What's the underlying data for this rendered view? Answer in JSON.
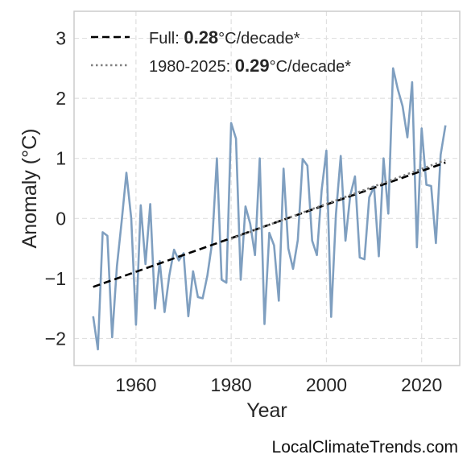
{
  "chart_data": {
    "type": "line",
    "title": "",
    "xlabel": "Year",
    "ylabel": "Anomaly (°C)",
    "xlim": [
      1947,
      2028
    ],
    "ylim": [
      -2.45,
      3.45
    ],
    "xticks": [
      1960,
      1980,
      2000,
      2020
    ],
    "yticks": [
      -2,
      -1,
      0,
      1,
      2,
      3
    ],
    "ytick_labels": [
      "−2",
      "−1",
      "0",
      "1",
      "2",
      "3"
    ],
    "grid": true,
    "legend_position": "top-left",
    "series": [
      {
        "kind": "data",
        "color": "#7f9fc0",
        "x": [
          1951,
          1952,
          1953,
          1954,
          1955,
          1956,
          1957,
          1958,
          1959,
          1960,
          1961,
          1962,
          1963,
          1964,
          1965,
          1966,
          1967,
          1968,
          1969,
          1970,
          1971,
          1972,
          1973,
          1974,
          1975,
          1976,
          1977,
          1978,
          1979,
          1980,
          1981,
          1982,
          1983,
          1984,
          1985,
          1986,
          1987,
          1988,
          1989,
          1990,
          1991,
          1992,
          1993,
          1994,
          1995,
          1996,
          1997,
          1998,
          1999,
          2000,
          2001,
          2002,
          2003,
          2004,
          2005,
          2006,
          2007,
          2008,
          2009,
          2010,
          2011,
          2012,
          2013,
          2014,
          2015,
          2016,
          2017,
          2018,
          2019,
          2020,
          2021,
          2022,
          2023,
          2024,
          2025
        ],
        "y": [
          -1.63,
          -2.18,
          -0.23,
          -0.29,
          -1.98,
          -0.8,
          -0.05,
          0.76,
          0.0,
          -1.77,
          0.22,
          -0.76,
          0.24,
          -1.5,
          -0.71,
          -1.56,
          -0.95,
          -0.52,
          -0.7,
          -0.58,
          -1.63,
          -0.88,
          -1.31,
          -1.33,
          -0.95,
          -0.4,
          1.0,
          -1.02,
          -1.07,
          1.59,
          1.33,
          -1.02,
          0.2,
          -0.09,
          -0.61,
          1.0,
          -1.76,
          -0.24,
          -0.45,
          -1.37,
          0.83,
          -0.5,
          -0.84,
          -0.36,
          0.99,
          0.88,
          -0.37,
          -0.61,
          0.47,
          1.13,
          -1.64,
          0.06,
          1.04,
          -0.37,
          0.38,
          0.7,
          -0.65,
          -0.68,
          0.35,
          0.53,
          -0.63,
          1.0,
          0.08,
          2.5,
          2.15,
          1.87,
          1.35,
          2.27,
          -0.48,
          1.5,
          0.56,
          0.54,
          -0.41,
          1.06,
          1.55
        ]
      },
      {
        "kind": "trend",
        "label_prefix": "Full: ",
        "label_value": "0.28",
        "label_suffix": "°C/decade*",
        "color": "#000000",
        "dash": "dashed",
        "x": [
          1951,
          2025
        ],
        "y": [
          -1.14,
          0.93
        ]
      },
      {
        "kind": "trend",
        "label_prefix": "1980-2025: ",
        "label_value": "0.29",
        "label_suffix": "°C/decade*",
        "color": "#808080",
        "dash": "dotted",
        "x": [
          1980,
          2025
        ],
        "y": [
          -0.34,
          0.97
        ]
      }
    ]
  },
  "watermark": "LocalClimateTrends.com"
}
